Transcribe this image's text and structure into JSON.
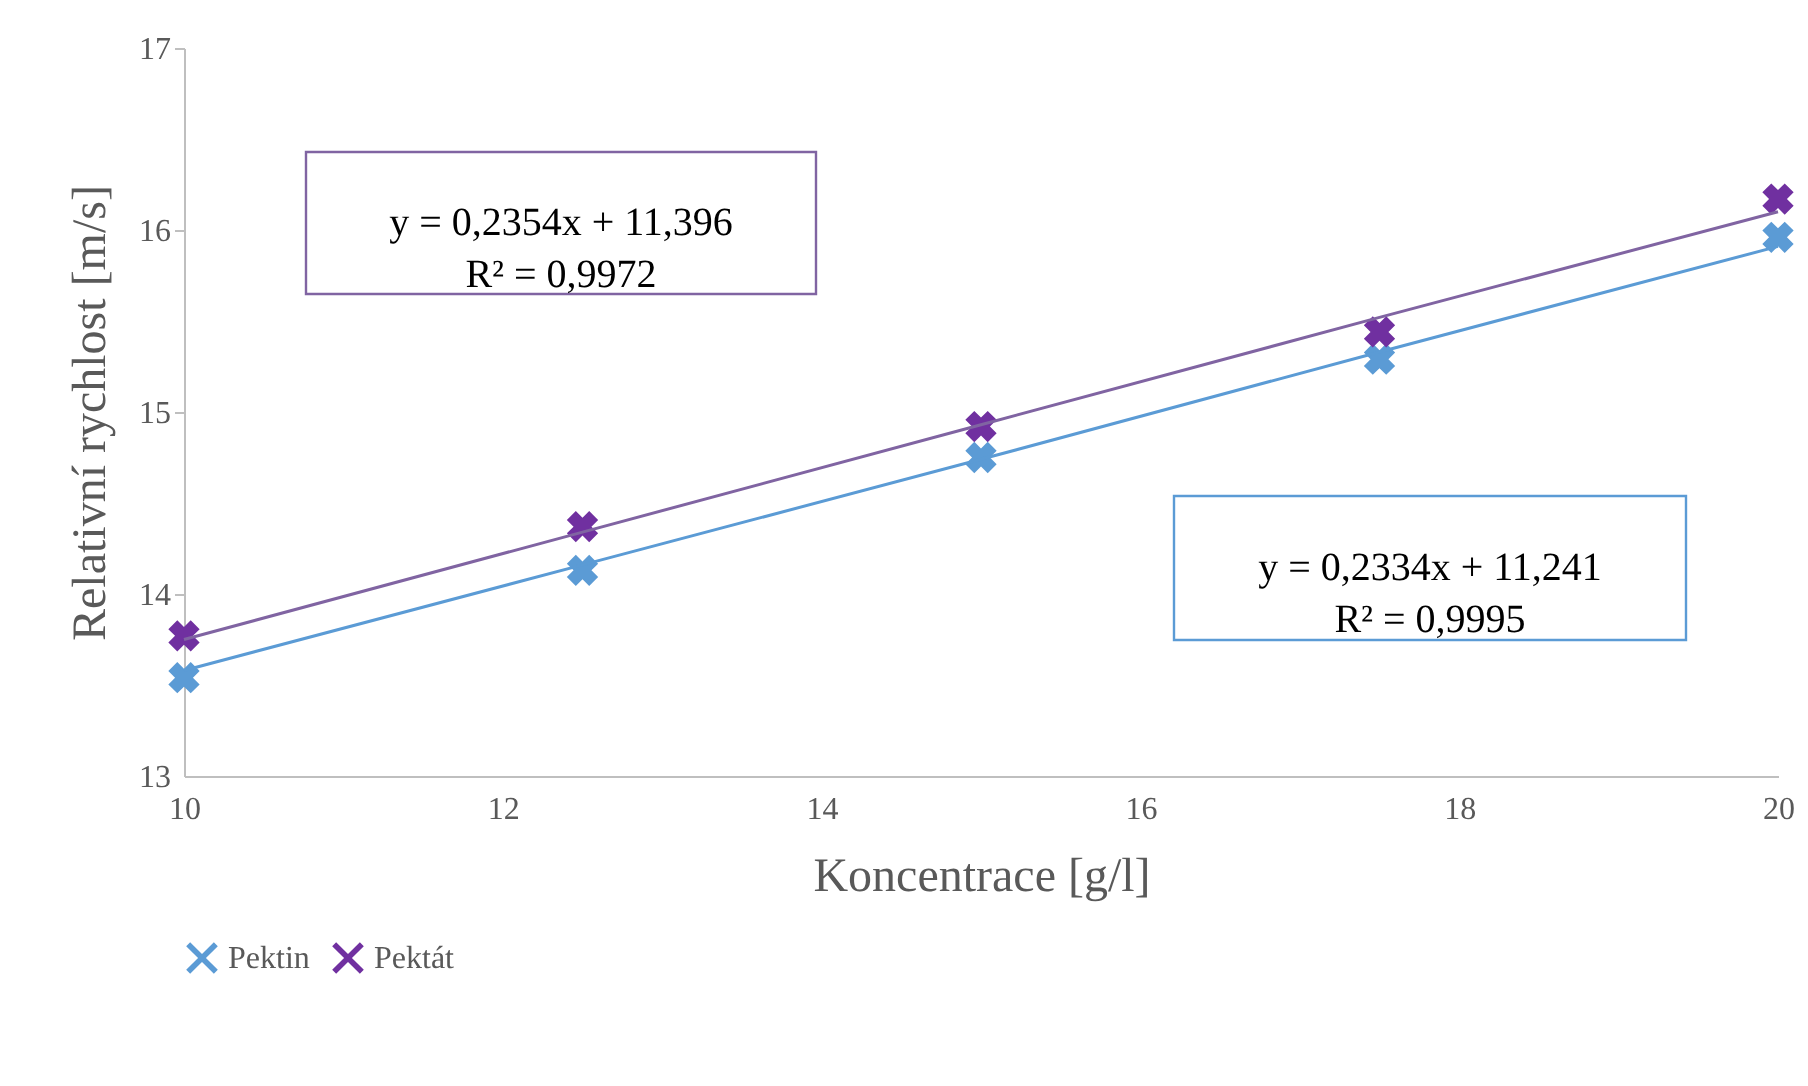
{
  "chart_data": {
    "type": "scatter",
    "xlabel": "Koncentrace [g/l]",
    "ylabel": "Relativní rychlost [m/s]",
    "x": [
      10,
      12.5,
      15,
      17.5,
      20
    ],
    "series": [
      {
        "name": "Pektin",
        "color": "#5b9bd5",
        "values": [
          13.54,
          14.13,
          14.75,
          15.29,
          15.96
        ]
      },
      {
        "name": "Pektát",
        "color": "#7030a0",
        "values": [
          13.77,
          14.37,
          14.92,
          15.44,
          16.17
        ]
      },
      {
        "type": "line",
        "color": "#8064a2",
        "marker": "none",
        "values": [
          13.75,
          14.34,
          14.93,
          15.52,
          16.1
        ]
      },
      {
        "type": "line",
        "color": "#5b9bd5",
        "marker": "none",
        "values": [
          13.58,
          14.16,
          14.74,
          15.33,
          15.91
        ]
      }
    ],
    "annotations": [
      "y = 0,2354x + 11,396\nR² = 0,9972",
      "y = 0,2334x + 11,241\nR² = 0,9995"
    ],
    "xlim": [
      10,
      20
    ],
    "xticks": [
      10,
      12,
      14,
      16,
      18,
      20
    ],
    "ylim": [
      13,
      17
    ],
    "yticks": [
      13,
      14,
      15,
      16,
      17
    ],
    "grid": false,
    "legend": "bottom",
    "marker": "cross",
    "line_style": "solid"
  }
}
